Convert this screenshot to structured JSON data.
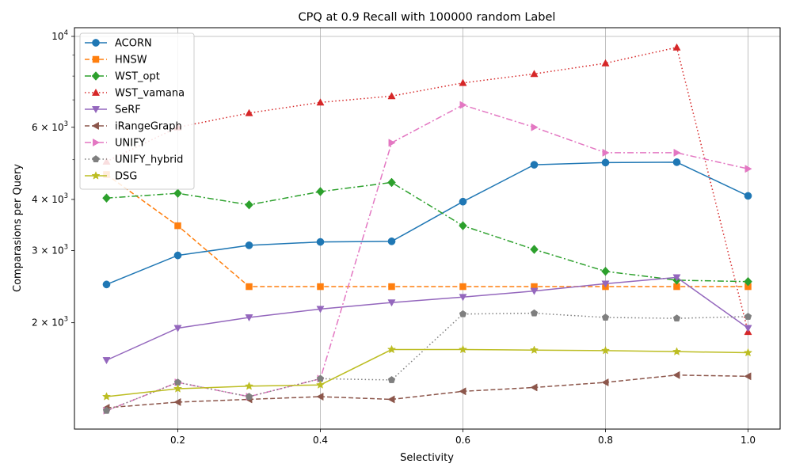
{
  "chart_data": {
    "type": "line",
    "title": "CPQ at 0.9 Recall with 100000 random Label",
    "xlabel": "Selectivity",
    "ylabel": "Comparasions per Query",
    "yscale": "log",
    "xlim": [
      0.055,
      1.045
    ],
    "ylim": [
      1100,
      10500
    ],
    "x": [
      0.1,
      0.2,
      0.3,
      0.4,
      0.5,
      0.6,
      0.7,
      0.8,
      0.9,
      1.0
    ],
    "x_ticks": [
      0.2,
      0.4,
      0.6,
      0.8,
      1.0
    ],
    "x_tick_labels": [
      "0.2",
      "0.4",
      "0.6",
      "0.8",
      "1.0"
    ],
    "y_ticks": [
      2000,
      3000,
      4000,
      6000,
      10000
    ],
    "y_tick_labels": [
      {
        "base": "2 × 10",
        "exp": "3"
      },
      {
        "base": "3 × 10",
        "exp": "3"
      },
      {
        "base": "4 × 10",
        "exp": "3"
      },
      {
        "base": "6 × 10",
        "exp": "3"
      },
      {
        "base": "10",
        "exp": "4"
      }
    ],
    "grid": "x-major",
    "legend_position": "top-left",
    "series": [
      {
        "name": "ACORN",
        "color": "#1f77b4",
        "dash": "solid",
        "marker": "circle",
        "values": [
          2480,
          2920,
          3090,
          3150,
          3160,
          3950,
          4860,
          4920,
          4930,
          4080
        ]
      },
      {
        "name": "HNSW",
        "color": "#ff7f0e",
        "dash": "dashed",
        "marker": "square",
        "values": [
          4600,
          3450,
          2450,
          2450,
          2450,
          2450,
          2450,
          2450,
          2450,
          2450
        ]
      },
      {
        "name": "WST_opt",
        "color": "#2ca02c",
        "dash": "dashdot",
        "marker": "diamond",
        "values": [
          4030,
          4140,
          3880,
          4180,
          4400,
          3450,
          3020,
          2670,
          2540,
          2520
        ]
      },
      {
        "name": "WST_vamana",
        "color": "#d62728",
        "dash": "dotted",
        "marker": "triangle-up",
        "values": [
          4950,
          6000,
          6500,
          6900,
          7150,
          7700,
          8100,
          8600,
          9400,
          1900
        ]
      },
      {
        "name": "SeRF",
        "color": "#9467bd",
        "dash": "solid",
        "marker": "triangle-down",
        "values": [
          1620,
          1940,
          2060,
          2160,
          2240,
          2310,
          2390,
          2490,
          2580,
          1940
        ]
      },
      {
        "name": "iRangeGraph",
        "color": "#8c564b",
        "dash": "dashed",
        "marker": "triangle-left",
        "values": [
          1240,
          1280,
          1300,
          1320,
          1300,
          1360,
          1390,
          1430,
          1490,
          1480
        ]
      },
      {
        "name": "UNIFY",
        "color": "#e377c2",
        "dash": "dashdot",
        "marker": "triangle-right",
        "values": [
          1220,
          1430,
          1320,
          1460,
          5500,
          6800,
          6000,
          5200,
          5200,
          4750
        ]
      },
      {
        "name": "UNIFY_hybrid",
        "color": "#7f7f7f",
        "dash": "dotted",
        "marker": "pentagon",
        "values": [
          1220,
          1430,
          1320,
          1460,
          1450,
          2100,
          2110,
          2060,
          2050,
          2070
        ]
      },
      {
        "name": "DSG",
        "color": "#bcbd22",
        "dash": "solid",
        "marker": "star",
        "values": [
          1320,
          1380,
          1400,
          1410,
          1720,
          1720,
          1715,
          1710,
          1700,
          1690
        ]
      }
    ]
  }
}
